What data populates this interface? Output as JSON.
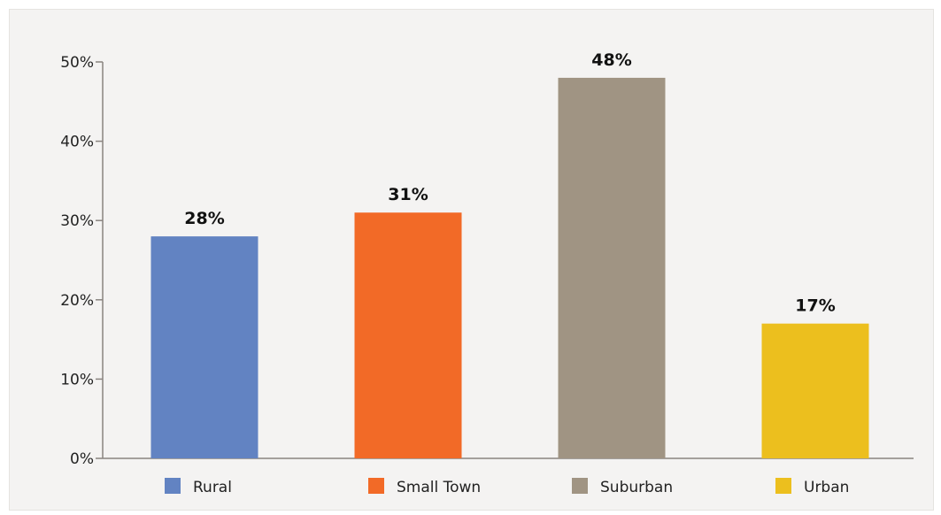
{
  "chart_data": {
    "type": "bar",
    "categories": [
      "Rural",
      "Small Town",
      "Suburban",
      "Urban"
    ],
    "values": [
      28,
      31,
      48,
      17
    ],
    "value_labels": [
      "28%",
      "31%",
      "48%",
      "17%"
    ],
    "colors": [
      "#6283c2",
      "#f26a27",
      "#a09483",
      "#ecbf1e"
    ],
    "ylim": [
      0,
      50
    ],
    "y_ticks": [
      0,
      10,
      20,
      30,
      40,
      50
    ],
    "y_tick_labels": [
      "0%",
      "10%",
      "20%",
      "30%",
      "40%",
      "50%"
    ],
    "grid": false,
    "legend_position": "bottom",
    "title": "",
    "xlabel": "",
    "ylabel": ""
  }
}
